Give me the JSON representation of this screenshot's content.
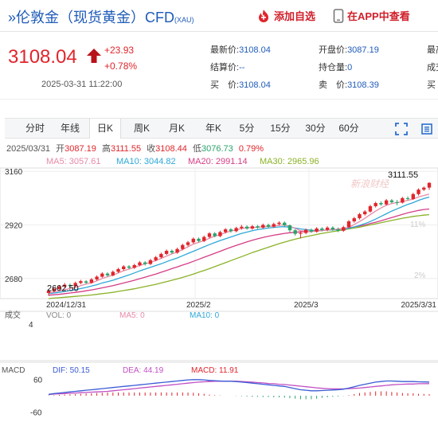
{
  "header": {
    "title": "伦敦金（现货黄金）CFD",
    "title_prefix": "»",
    "title_sub": "(XAU)",
    "add_watchlist_label": "添加自选",
    "open_app_label": "在APP中查看"
  },
  "quote": {
    "price": "3108.04",
    "change": "+23.93",
    "change_pct": "+0.78%",
    "time": "2025-03-31 11:22:00",
    "fields": [
      {
        "label": "最新价:",
        "value": "3108.04"
      },
      {
        "label": "开盘价:",
        "value": "3087.19"
      },
      {
        "label": "最高",
        "value": ""
      },
      {
        "label": "结算价:",
        "value": "--"
      },
      {
        "label": "持仓量:",
        "value": "0"
      },
      {
        "label": "成交",
        "value": ""
      },
      {
        "label": "买　价:",
        "value": "3108.04"
      },
      {
        "label": "卖　价:",
        "value": "3108.39"
      },
      {
        "label": "买",
        "value": ""
      }
    ]
  },
  "tabs": [
    "分时",
    "年线",
    "日K",
    "周K",
    "月K",
    "年K",
    "5分",
    "15分",
    "30分",
    "60分"
  ],
  "active_tab": "日K",
  "toolbar_icons": [
    "fullscreen-icon",
    "settings-icon"
  ],
  "kline_info": {
    "date": "2025/03/31",
    "open_label": "开",
    "open": "3087.19",
    "high_label": "高",
    "high": "3111.55",
    "close_label": "收",
    "close": "3108.44",
    "low_label": "低",
    "low": "3076.73",
    "change_pct": "0.79%"
  },
  "ma": [
    {
      "label": "MA5:",
      "value": "3057.61",
      "color": "#e88aa6"
    },
    {
      "label": "MA10:",
      "value": "3044.82",
      "color": "#2ea8d8"
    },
    {
      "label": "MA20:",
      "value": "2991.14",
      "color": "#d63d86"
    },
    {
      "label": "MA30:",
      "value": "2965.96",
      "color": "#8ab227"
    }
  ],
  "colors": {
    "up": "#e0252c",
    "down": "#2aa36b",
    "brand": "#1e5bb8",
    "vol": "#888888",
    "dif": "#3b5bd6",
    "dea": "#c24fc4"
  },
  "chart_data": {
    "type": "candlestick",
    "x_labels": [
      "2024/12/31",
      "2025/2",
      "2025/3",
      "2025/3/31"
    ],
    "y_ticks": [
      3160,
      2920,
      2680
    ],
    "y_range": [
      2590,
      3175
    ],
    "right_pct_labels": [
      "11%",
      "2%"
    ],
    "max_label": "3111.55",
    "min_label": "2602.50",
    "watermark": "新浪财经",
    "candles": [
      [
        2615,
        2625,
        2603,
        2632
      ],
      [
        2624,
        2634,
        2618,
        2640
      ],
      [
        2633,
        2644,
        2628,
        2650
      ],
      [
        2644,
        2652,
        2638,
        2660
      ],
      [
        2651,
        2646,
        2640,
        2658
      ],
      [
        2646,
        2660,
        2641,
        2666
      ],
      [
        2660,
        2668,
        2654,
        2674
      ],
      [
        2667,
        2661,
        2655,
        2673
      ],
      [
        2661,
        2676,
        2657,
        2682
      ],
      [
        2676,
        2688,
        2670,
        2694
      ],
      [
        2688,
        2702,
        2683,
        2708
      ],
      [
        2702,
        2694,
        2688,
        2708
      ],
      [
        2694,
        2710,
        2690,
        2716
      ],
      [
        2710,
        2722,
        2705,
        2728
      ],
      [
        2722,
        2734,
        2716,
        2740
      ],
      [
        2734,
        2728,
        2722,
        2740
      ],
      [
        2728,
        2740,
        2723,
        2746
      ],
      [
        2740,
        2752,
        2735,
        2758
      ],
      [
        2752,
        2745,
        2738,
        2758
      ],
      [
        2745,
        2762,
        2740,
        2768
      ],
      [
        2762,
        2775,
        2757,
        2781
      ],
      [
        2775,
        2790,
        2770,
        2796
      ],
      [
        2790,
        2804,
        2785,
        2810
      ],
      [
        2804,
        2796,
        2790,
        2810
      ],
      [
        2796,
        2812,
        2791,
        2818
      ],
      [
        2812,
        2830,
        2806,
        2836
      ],
      [
        2830,
        2842,
        2824,
        2848
      ],
      [
        2842,
        2858,
        2836,
        2864
      ],
      [
        2858,
        2848,
        2842,
        2864
      ],
      [
        2848,
        2866,
        2843,
        2872
      ],
      [
        2866,
        2882,
        2860,
        2888
      ],
      [
        2882,
        2870,
        2864,
        2888
      ],
      [
        2870,
        2888,
        2865,
        2894
      ],
      [
        2888,
        2900,
        2882,
        2906
      ],
      [
        2900,
        2892,
        2885,
        2906
      ],
      [
        2892,
        2906,
        2887,
        2912
      ],
      [
        2906,
        2912,
        2899,
        2920
      ],
      [
        2912,
        2904,
        2898,
        2918
      ],
      [
        2904,
        2914,
        2898,
        2920
      ],
      [
        2914,
        2908,
        2902,
        2920
      ],
      [
        2908,
        2920,
        2903,
        2926
      ],
      [
        2920,
        2912,
        2905,
        2926
      ],
      [
        2912,
        2924,
        2907,
        2930
      ],
      [
        2924,
        2930,
        2917,
        2936
      ],
      [
        2930,
        2918,
        2912,
        2936
      ],
      [
        2918,
        2896,
        2888,
        2922
      ],
      [
        2896,
        2880,
        2872,
        2902
      ],
      [
        2880,
        2884,
        2860,
        2892
      ],
      [
        2884,
        2898,
        2878,
        2904
      ],
      [
        2898,
        2890,
        2884,
        2904
      ],
      [
        2890,
        2904,
        2885,
        2910
      ],
      [
        2904,
        2898,
        2891,
        2910
      ],
      [
        2898,
        2908,
        2892,
        2914
      ],
      [
        2908,
        2900,
        2894,
        2914
      ],
      [
        2900,
        2894,
        2888,
        2908
      ],
      [
        2894,
        2910,
        2889,
        2916
      ],
      [
        2910,
        2936,
        2905,
        2942
      ],
      [
        2936,
        2950,
        2930,
        2956
      ],
      [
        2950,
        2968,
        2944,
        2974
      ],
      [
        2968,
        2980,
        2962,
        2986
      ],
      [
        2980,
        3004,
        2975,
        3010
      ],
      [
        3004,
        3018,
        2998,
        3024
      ],
      [
        3018,
        3012,
        3006,
        3026
      ],
      [
        3012,
        3030,
        3007,
        3036
      ],
      [
        3030,
        3022,
        3016,
        3036
      ],
      [
        3022,
        3020,
        3008,
        3032
      ],
      [
        3020,
        3040,
        3016,
        3046
      ],
      [
        3040,
        3036,
        3030,
        3048
      ],
      [
        3036,
        3058,
        3032,
        3064
      ],
      [
        3058,
        3078,
        3052,
        3084
      ],
      [
        3078,
        3087,
        3072,
        3092
      ],
      [
        3087.19,
        3108.44,
        3076.73,
        3111.55
      ]
    ],
    "ma5": [
      2615,
      2620,
      2625,
      2630,
      2635,
      2640,
      2648,
      2655,
      2660,
      2670,
      2680,
      2688,
      2695,
      2705,
      2715,
      2722,
      2730,
      2738,
      2746,
      2752,
      2760,
      2770,
      2780,
      2790,
      2798,
      2810,
      2822,
      2834,
      2842,
      2850,
      2860,
      2870,
      2876,
      2885,
      2893,
      2898,
      2904,
      2907,
      2908,
      2910,
      2912,
      2913,
      2915,
      2918,
      2920,
      2914,
      2905,
      2894,
      2892,
      2890,
      2892,
      2895,
      2898,
      2900,
      2900,
      2903,
      2910,
      2922,
      2935,
      2950,
      2966,
      2982,
      2996,
      3008,
      3016,
      3020,
      3025,
      3030,
      3036,
      3045,
      3052,
      3057.61
    ],
    "ma10": [
      2612,
      2615,
      2618,
      2622,
      2626,
      2630,
      2635,
      2640,
      2646,
      2652,
      2660,
      2666,
      2672,
      2680,
      2688,
      2696,
      2705,
      2714,
      2722,
      2730,
      2738,
      2746,
      2755,
      2764,
      2772,
      2782,
      2792,
      2802,
      2812,
      2822,
      2832,
      2841,
      2850,
      2858,
      2866,
      2874,
      2882,
      2888,
      2894,
      2899,
      2903,
      2906,
      2909,
      2911,
      2912,
      2910,
      2906,
      2902,
      2899,
      2896,
      2895,
      2896,
      2897,
      2898,
      2899,
      2901,
      2905,
      2911,
      2918,
      2926,
      2935,
      2946,
      2958,
      2970,
      2982,
      2992,
      3002,
      3012,
      3020,
      3030,
      3038,
      3044.82
    ],
    "ma20": [
      2605,
      2607,
      2609,
      2612,
      2615,
      2618,
      2621,
      2625,
      2629,
      2633,
      2638,
      2643,
      2648,
      2654,
      2660,
      2666,
      2672,
      2679,
      2686,
      2693,
      2700,
      2708,
      2716,
      2724,
      2732,
      2740,
      2748,
      2757,
      2766,
      2775,
      2784,
      2793,
      2802,
      2811,
      2820,
      2828,
      2836,
      2844,
      2851,
      2858,
      2864,
      2869,
      2874,
      2878,
      2882,
      2885,
      2887,
      2889,
      2890,
      2891,
      2893,
      2895,
      2897,
      2899,
      2901,
      2904,
      2907,
      2911,
      2915,
      2920,
      2926,
      2932,
      2939,
      2946,
      2953,
      2960,
      2967,
      2974,
      2980,
      2985,
      2989,
      2991.14
    ],
    "ma30": [
      2590,
      2592,
      2594,
      2596,
      2598,
      2600,
      2602,
      2604,
      2606,
      2609,
      2612,
      2615,
      2618,
      2622,
      2626,
      2630,
      2634,
      2639,
      2644,
      2649,
      2654,
      2660,
      2666,
      2672,
      2678,
      2685,
      2692,
      2700,
      2708,
      2716,
      2724,
      2733,
      2742,
      2751,
      2760,
      2769,
      2778,
      2787,
      2796,
      2804,
      2812,
      2820,
      2828,
      2836,
      2843,
      2850,
      2856,
      2862,
      2867,
      2872,
      2877,
      2882,
      2886,
      2890,
      2894,
      2898,
      2902,
      2906,
      2910,
      2915,
      2920,
      2925,
      2930,
      2935,
      2940,
      2945,
      2950,
      2954,
      2958,
      2961,
      2964,
      2965.96
    ],
    "volume": {
      "label": "成交",
      "scale": "4",
      "vol_label": "VOL:",
      "vol": "0",
      "ma5_label": "MA5:",
      "ma5": "0",
      "ma10_label": "MA10:",
      "ma10": "0"
    },
    "macd": {
      "label": "MACD",
      "dif_label": "DIF:",
      "dif": "50.15",
      "dea_label": "DEA:",
      "dea": "44.19",
      "macd_label": "MACD:",
      "macd": "11.91",
      "y_ticks": [
        60,
        -60
      ],
      "dif_series": [
        5,
        8,
        10,
        12,
        14,
        16,
        18,
        20,
        22,
        24,
        26,
        28,
        30,
        32,
        34,
        36,
        38,
        40,
        42,
        44,
        46,
        48,
        50,
        52,
        54,
        56,
        58,
        59,
        59,
        58,
        56,
        55,
        54,
        53,
        53,
        52,
        50,
        48,
        46,
        44,
        42,
        40,
        38,
        36,
        34,
        30,
        26,
        22,
        20,
        18,
        18,
        19,
        20,
        21,
        22,
        24,
        28,
        33,
        38,
        42,
        46,
        50,
        52,
        54,
        54,
        53,
        52,
        52,
        52,
        51,
        50.5,
        50.15
      ],
      "dea_series": [
        4,
        6,
        7,
        8,
        9,
        10,
        11,
        12,
        13,
        14,
        15,
        16,
        18,
        20,
        22,
        24,
        26,
        28,
        30,
        32,
        34,
        36,
        38,
        40,
        42,
        44,
        46,
        48,
        50,
        51,
        52,
        53,
        53,
        53,
        53,
        53,
        52,
        51,
        50,
        48,
        47,
        45,
        44,
        42,
        41,
        39,
        37,
        35,
        33,
        31,
        29,
        27,
        26,
        25,
        25,
        25,
        26,
        27,
        28,
        30,
        32,
        34,
        36,
        38,
        40,
        41,
        42,
        43,
        43,
        44,
        44,
        44.19
      ],
      "hist": [
        2,
        4,
        6,
        8,
        10,
        12,
        14,
        16,
        18,
        20,
        22,
        24,
        24,
        24,
        24,
        24,
        24,
        24,
        24,
        24,
        24,
        24,
        24,
        24,
        24,
        24,
        24,
        22,
        18,
        14,
        8,
        4,
        2,
        0,
        0,
        -2,
        -4,
        -6,
        -8,
        -8,
        -10,
        -10,
        -12,
        -12,
        -14,
        -18,
        -22,
        -26,
        -26,
        -26,
        -22,
        -16,
        -12,
        -8,
        -6,
        -2,
        4,
        12,
        20,
        24,
        28,
        32,
        32,
        32,
        28,
        24,
        20,
        18,
        18,
        14,
        13,
        11.91
      ]
    }
  }
}
